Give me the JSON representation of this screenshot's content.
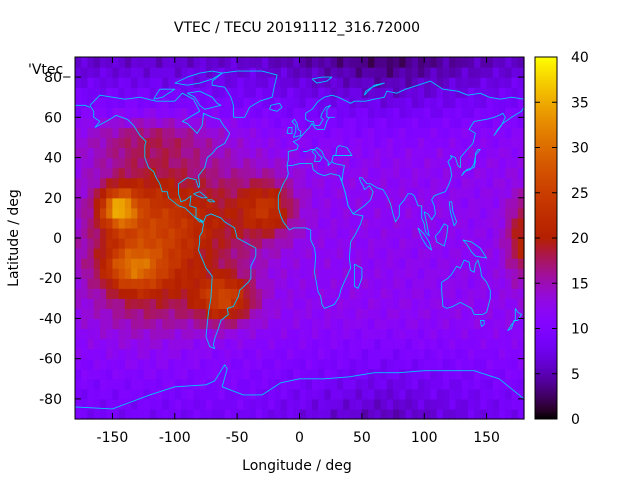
{
  "chart_data": {
    "type": "heatmap",
    "title": "VTEC / TECU 20191112_316.72000",
    "xlabel": "Longitude / deg",
    "ylabel": "Latitude / deg",
    "key_label": "'Vtec_",
    "xlim": [
      -180,
      180
    ],
    "ylim": [
      -90,
      90
    ],
    "x_ticks": [
      -150,
      -100,
      -50,
      0,
      50,
      100,
      150
    ],
    "y_ticks": [
      80,
      60,
      40,
      20,
      0,
      -20,
      -40,
      -60,
      -80
    ],
    "colorbar_range": [
      0,
      40
    ],
    "colorbar_ticks": [
      0,
      5,
      10,
      15,
      20,
      25,
      30,
      35,
      40
    ],
    "grid_resolution_deg": 5,
    "palette": "gnuplot rgbformulae 7,5,15",
    "features": [
      {
        "name": "pacific-crest-north",
        "lon": -145,
        "lat": 15,
        "peak": 39
      },
      {
        "name": "pacific-crest-south",
        "lon": -135,
        "lat": -15,
        "peak": 31
      },
      {
        "name": "south-america-south-crest",
        "lon": -60,
        "lat": -30,
        "peak": 24
      },
      {
        "name": "atlantic-north-crest",
        "lon": -25,
        "lat": 15,
        "peak": 21
      },
      {
        "name": "east-edge-enhancement",
        "lon": 180,
        "lat": 0,
        "peak": 21
      },
      {
        "name": "polar-background",
        "lon": 0,
        "lat": 75,
        "value": 4
      },
      {
        "name": "dayside-background",
        "lon": 50,
        "lat": 0,
        "value": 12
      }
    ]
  }
}
